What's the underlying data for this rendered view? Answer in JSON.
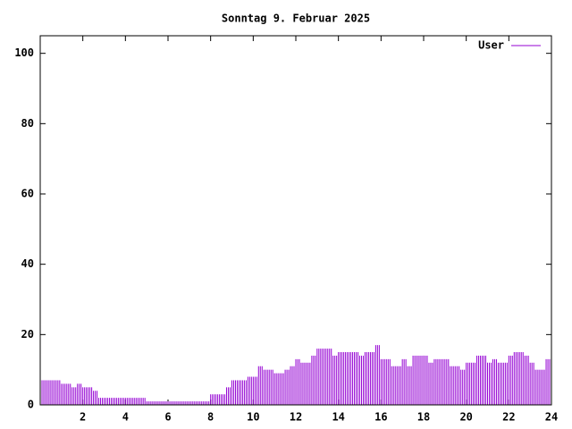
{
  "chart_data": {
    "type": "impulse",
    "title": "Sonntag 9. Februar 2025",
    "x": [
      0,
      0.25,
      0.5,
      0.75,
      1,
      1.25,
      1.5,
      1.75,
      2,
      2.25,
      2.5,
      2.75,
      3,
      3.25,
      3.5,
      3.75,
      4,
      4.25,
      4.5,
      4.75,
      5,
      5.25,
      5.5,
      5.75,
      6,
      6.25,
      6.5,
      6.75,
      7,
      7.25,
      7.5,
      7.75,
      8,
      8.25,
      8.5,
      8.75,
      9,
      9.25,
      9.5,
      9.75,
      10,
      10.25,
      10.5,
      10.75,
      11,
      11.25,
      11.5,
      11.75,
      12,
      12.25,
      12.5,
      12.75,
      13,
      13.25,
      13.5,
      13.75,
      14,
      14.25,
      14.5,
      14.75,
      15,
      15.25,
      15.5,
      15.75,
      16,
      16.25,
      16.5,
      16.75,
      17,
      17.25,
      17.5,
      17.75,
      18,
      18.25,
      18.5,
      18.75,
      19,
      19.25,
      19.5,
      19.75,
      20,
      20.25,
      20.5,
      20.75,
      21,
      21.25,
      21.5,
      21.75,
      22,
      22.25,
      22.5,
      22.75,
      23,
      23.25,
      23.5,
      23.75
    ],
    "series": [
      {
        "name": "User",
        "color": "#9400d3",
        "values": [
          7,
          7,
          7,
          7,
          6,
          6,
          5,
          6,
          5,
          5,
          4,
          2,
          2,
          2,
          2,
          2,
          2,
          2,
          2,
          2,
          1,
          1,
          1,
          1,
          1,
          1,
          1,
          1,
          1,
          1,
          1,
          1,
          3,
          3,
          3,
          5,
          7,
          7,
          7,
          8,
          8,
          11,
          10,
          10,
          9,
          9,
          10,
          11,
          13,
          12,
          12,
          14,
          16,
          16,
          16,
          14,
          15,
          15,
          15,
          15,
          14,
          15,
          15,
          17,
          13,
          13,
          11,
          11,
          13,
          11,
          14,
          14,
          14,
          12,
          13,
          13,
          13,
          11,
          11,
          10,
          12,
          12,
          14,
          14,
          12,
          13,
          12,
          12,
          14,
          15,
          15,
          14,
          12,
          10,
          10,
          13
        ]
      }
    ],
    "xlim": [
      0,
      24
    ],
    "xticks": [
      2,
      4,
      6,
      8,
      10,
      12,
      14,
      16,
      18,
      20,
      22,
      24
    ],
    "ylim": [
      0,
      105
    ],
    "yticks": [
      0,
      20,
      40,
      60,
      80,
      100
    ],
    "legend": "upper right"
  }
}
